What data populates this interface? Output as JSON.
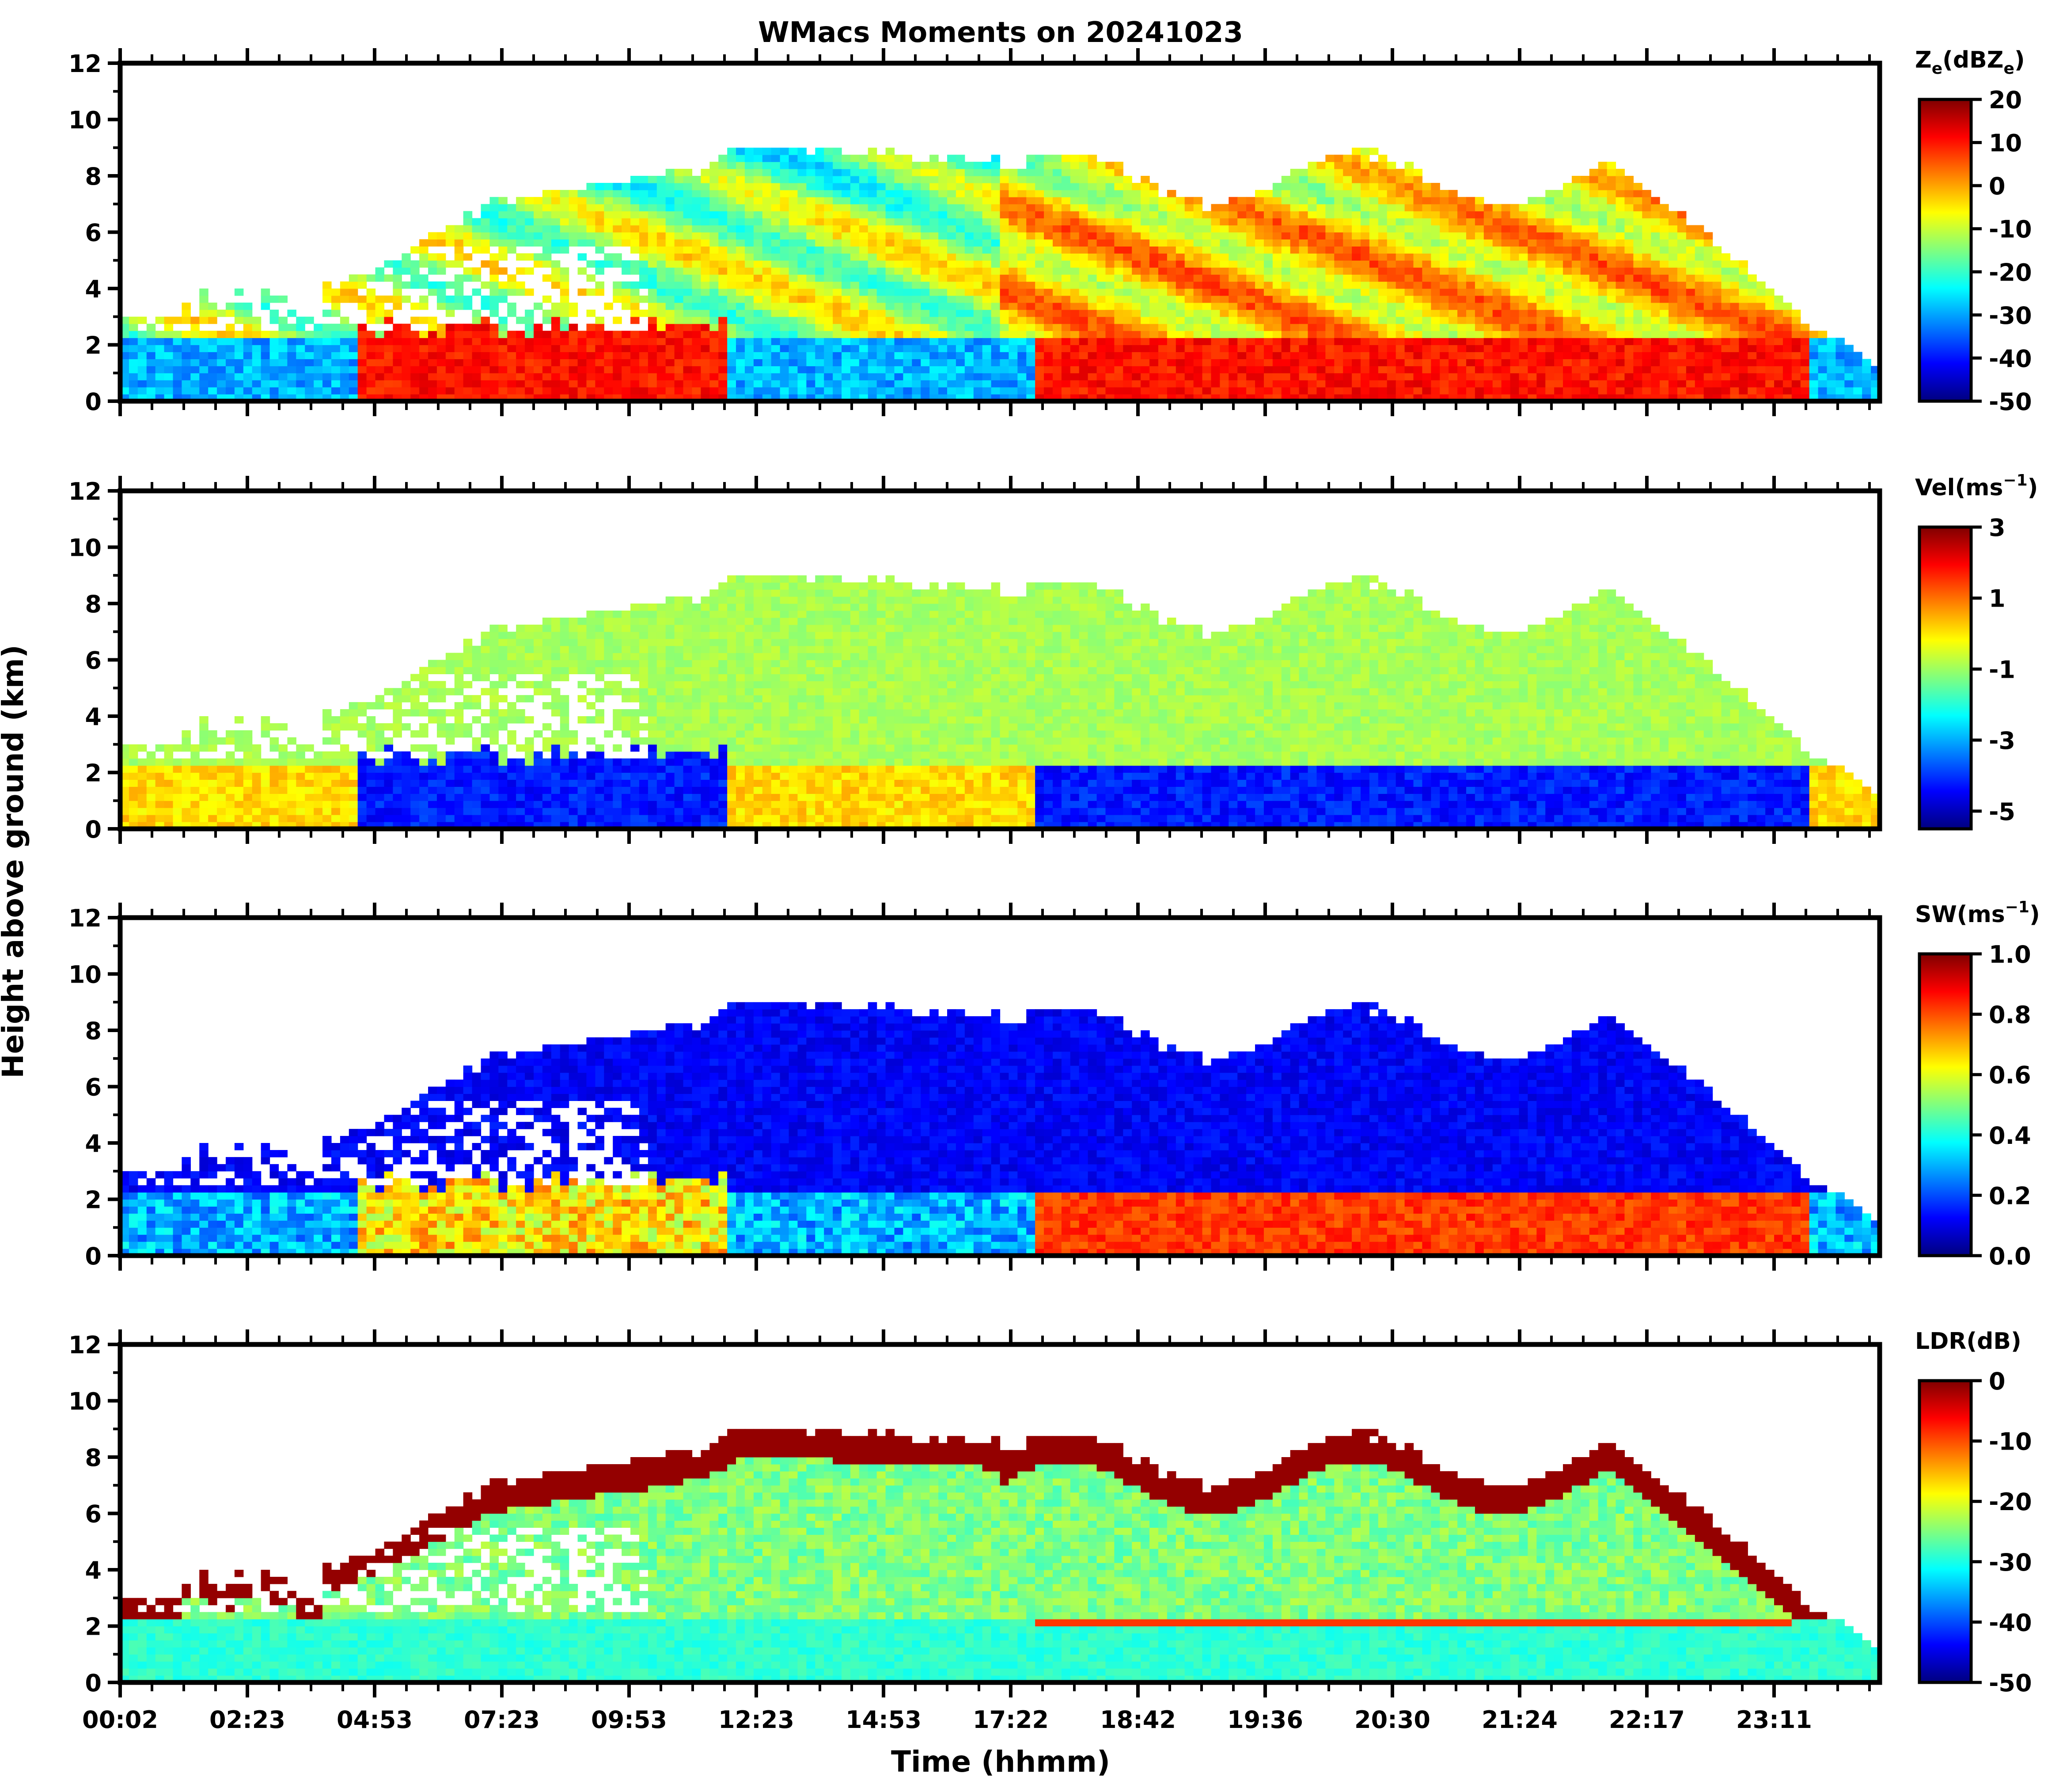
{
  "chart_data": {
    "type": "heatmap",
    "title": "WMacs Moments on 20241023",
    "xlabel": "Time (hhmm)",
    "ylabel": "Height above ground (km)",
    "x_tick_labels": [
      "00:02",
      "02:23",
      "04:53",
      "07:23",
      "09:53",
      "12:23",
      "14:53",
      "17:22",
      "18:42",
      "19:36",
      "20:30",
      "21:24",
      "22:17",
      "23:11"
    ],
    "panels": [
      {
        "id": "ze",
        "colorbar_label": "Ze(dBZe)",
        "colorbar_label_main": "Z",
        "colorbar_label_sub": "e",
        "colorbar_label_mid": "(dBZ",
        "colorbar_label_sub2": "e",
        "colorbar_label_end": ")",
        "ylim": [
          0,
          12
        ],
        "y_ticks": [
          "0",
          "2",
          "4",
          "6",
          "8",
          "10",
          "12"
        ],
        "colorbar_range": [
          -50,
          20
        ],
        "colorbar_ticks": [
          "20",
          "10",
          "0",
          "-10",
          "-20",
          "-30",
          "-40",
          "-50"
        ]
      },
      {
        "id": "vel",
        "colorbar_label": "Vel(ms-1)",
        "colorbar_label_main": "Vel(ms",
        "colorbar_label_sup": "−1",
        "colorbar_label_end": ")",
        "ylim": [
          0,
          12
        ],
        "y_ticks": [
          "0",
          "2",
          "4",
          "6",
          "8",
          "10",
          "12"
        ],
        "colorbar_range": [
          -5.5,
          3
        ],
        "colorbar_ticks": [
          "3",
          "1",
          "-1",
          "-3",
          "-5"
        ]
      },
      {
        "id": "sw",
        "colorbar_label": "SW(ms-1)",
        "colorbar_label_main": "SW(ms",
        "colorbar_label_sup": "−1",
        "colorbar_label_end": ")",
        "ylim": [
          0,
          12
        ],
        "y_ticks": [
          "0",
          "2",
          "4",
          "6",
          "8",
          "10",
          "12"
        ],
        "colorbar_range": [
          0,
          1
        ],
        "colorbar_ticks": [
          "1.0",
          "0.8",
          "0.6",
          "0.4",
          "0.2",
          "0.0"
        ]
      },
      {
        "id": "ldr",
        "colorbar_label": "LDR(dB)",
        "colorbar_label_main": "LDR(dB)",
        "ylim": [
          0,
          12
        ],
        "y_ticks": [
          "0",
          "2",
          "4",
          "6",
          "8",
          "10",
          "12"
        ],
        "colorbar_range": [
          -50,
          0
        ],
        "colorbar_ticks": [
          "0",
          "-10",
          "-20",
          "-30",
          "-40",
          "-50"
        ]
      }
    ]
  },
  "colors": {
    "jet": [
      "#00007f",
      "#0000ff",
      "#007fff",
      "#00ffff",
      "#7fff7f",
      "#ffff00",
      "#ff7f00",
      "#ff0000",
      "#7f0000"
    ]
  }
}
